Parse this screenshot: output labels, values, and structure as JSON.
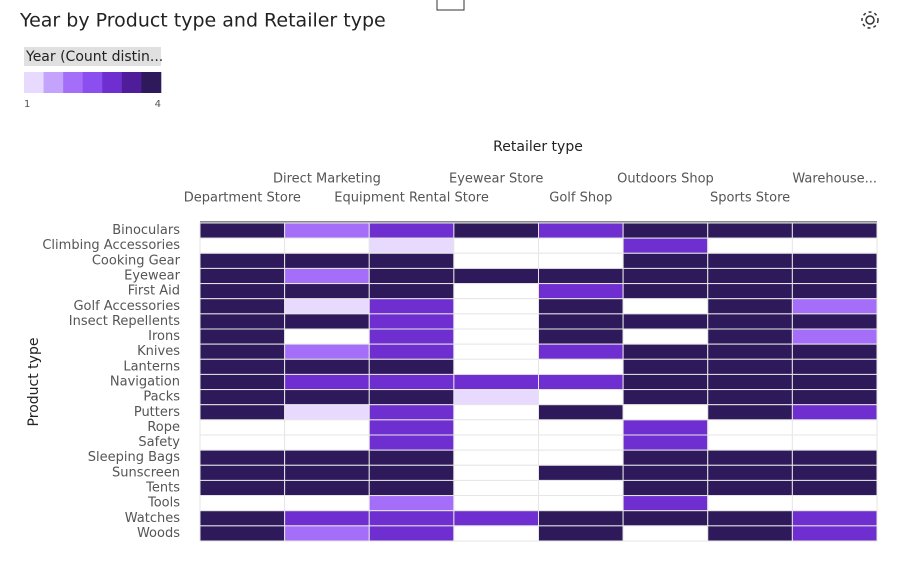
{
  "chart_data": {
    "type": "heatmap",
    "title": "Year by Product type and Retailer type",
    "x_label": "Retailer type",
    "y_label": "Product type",
    "legend_title": "Year (Count distin...",
    "legend_ticks": [
      1,
      4
    ],
    "colors": [
      "#e8daff",
      "#c3a3fb",
      "#a56ef8",
      "#8a4fee",
      "#6f2fd0",
      "#4f1d9a",
      "#2e1a5a"
    ],
    "x_categories": [
      "Department Store",
      "Direct Marketing",
      "Equipment Rental Store",
      "Eyewear Store",
      "Golf Shop",
      "Outdoors Shop",
      "Sports Store",
      "Warehouse..."
    ],
    "y_categories": [
      "Binoculars",
      "Climbing Accessories",
      "Cooking Gear",
      "Eyewear",
      "First Aid",
      "Golf Accessories",
      "Insect Repellents",
      "Irons",
      "Knives",
      "Lanterns",
      "Navigation",
      "Packs",
      "Putters",
      "Rope",
      "Safety",
      "Sleeping Bags",
      "Sunscreen",
      "Tents",
      "Tools",
      "Watches",
      "Woods"
    ],
    "values": [
      [
        4,
        2,
        3,
        4,
        3,
        4,
        4,
        4
      ],
      [
        null,
        null,
        1,
        null,
        null,
        3,
        null,
        null
      ],
      [
        4,
        4,
        4,
        null,
        null,
        4,
        4,
        4
      ],
      [
        4,
        2,
        4,
        4,
        4,
        4,
        4,
        4
      ],
      [
        4,
        4,
        4,
        null,
        3,
        4,
        4,
        4
      ],
      [
        4,
        1,
        3,
        null,
        4,
        null,
        4,
        2
      ],
      [
        4,
        4,
        3,
        null,
        4,
        4,
        4,
        4
      ],
      [
        4,
        null,
        3,
        null,
        4,
        null,
        4,
        2
      ],
      [
        4,
        2,
        3,
        null,
        3,
        4,
        4,
        4
      ],
      [
        4,
        4,
        4,
        null,
        null,
        4,
        4,
        4
      ],
      [
        4,
        3,
        3,
        3,
        3,
        4,
        4,
        4
      ],
      [
        4,
        4,
        4,
        1,
        null,
        4,
        4,
        4
      ],
      [
        4,
        1,
        3,
        null,
        4,
        null,
        4,
        3
      ],
      [
        null,
        null,
        3,
        null,
        null,
        3,
        null,
        null
      ],
      [
        null,
        null,
        3,
        null,
        null,
        3,
        null,
        null
      ],
      [
        4,
        4,
        4,
        null,
        null,
        4,
        4,
        4
      ],
      [
        4,
        4,
        4,
        null,
        4,
        4,
        4,
        4
      ],
      [
        4,
        4,
        4,
        null,
        null,
        4,
        4,
        4
      ],
      [
        null,
        null,
        2,
        null,
        null,
        3,
        null,
        null
      ],
      [
        4,
        3,
        3,
        3,
        4,
        4,
        4,
        3
      ],
      [
        4,
        2,
        3,
        null,
        4,
        null,
        4,
        3
      ]
    ]
  }
}
